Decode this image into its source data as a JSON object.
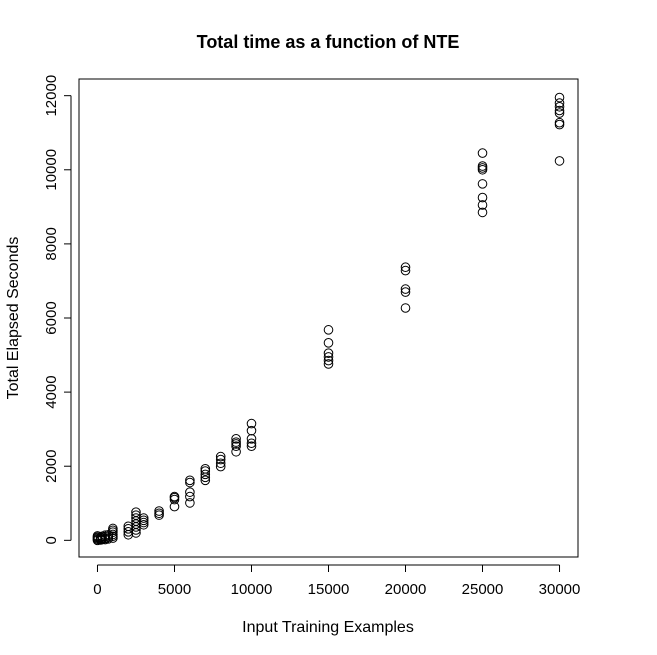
{
  "chart_data": {
    "type": "scatter",
    "title": "Total time as a function of NTE",
    "xlabel": "Input Training Examples",
    "ylabel": "Total Elapsed Seconds",
    "xlim": [
      -1200,
      31200
    ],
    "ylim": [
      -450,
      12450
    ],
    "xticks": [
      0,
      5000,
      10000,
      15000,
      20000,
      25000,
      30000
    ],
    "yticks": [
      0,
      2000,
      4000,
      6000,
      8000,
      10000,
      12000
    ],
    "grid": false,
    "legend": "none",
    "point_color": "#000000",
    "points": [
      [
        0,
        0
      ],
      [
        0,
        30
      ],
      [
        0,
        60
      ],
      [
        0,
        90
      ],
      [
        0,
        120
      ],
      [
        200,
        10
      ],
      [
        200,
        40
      ],
      [
        200,
        80
      ],
      [
        300,
        20
      ],
      [
        300,
        60
      ],
      [
        300,
        110
      ],
      [
        500,
        20
      ],
      [
        500,
        50
      ],
      [
        500,
        100
      ],
      [
        500,
        140
      ],
      [
        700,
        40
      ],
      [
        700,
        90
      ],
      [
        700,
        150
      ],
      [
        1000,
        60
      ],
      [
        1000,
        110
      ],
      [
        1000,
        160
      ],
      [
        1000,
        220
      ],
      [
        1000,
        270
      ],
      [
        1000,
        320
      ],
      [
        2000,
        150
      ],
      [
        2000,
        230
      ],
      [
        2000,
        310
      ],
      [
        2000,
        380
      ],
      [
        2500,
        200
      ],
      [
        2500,
        280
      ],
      [
        2500,
        360
      ],
      [
        2500,
        440
      ],
      [
        2500,
        520
      ],
      [
        2500,
        600
      ],
      [
        2500,
        680
      ],
      [
        2500,
        760
      ],
      [
        3000,
        420
      ],
      [
        3000,
        480
      ],
      [
        3000,
        540
      ],
      [
        3000,
        600
      ],
      [
        4000,
        680
      ],
      [
        4000,
        730
      ],
      [
        4000,
        790
      ],
      [
        5000,
        910
      ],
      [
        5000,
        1100
      ],
      [
        5000,
        1150
      ],
      [
        5000,
        1180
      ],
      [
        6000,
        1010
      ],
      [
        6000,
        1180
      ],
      [
        6000,
        1300
      ],
      [
        6000,
        1560
      ],
      [
        6000,
        1620
      ],
      [
        7000,
        1620
      ],
      [
        7000,
        1700
      ],
      [
        7000,
        1780
      ],
      [
        7000,
        1870
      ],
      [
        7000,
        1930
      ],
      [
        8000,
        1990
      ],
      [
        8000,
        2080
      ],
      [
        8000,
        2180
      ],
      [
        8000,
        2260
      ],
      [
        9000,
        2390
      ],
      [
        9000,
        2540
      ],
      [
        9000,
        2600
      ],
      [
        9000,
        2650
      ],
      [
        9000,
        2740
      ],
      [
        10000,
        2540
      ],
      [
        10000,
        2620
      ],
      [
        10000,
        2740
      ],
      [
        10000,
        2960
      ],
      [
        10000,
        3150
      ],
      [
        15000,
        4760
      ],
      [
        15000,
        4850
      ],
      [
        15000,
        4950
      ],
      [
        15000,
        5050
      ],
      [
        15000,
        5330
      ],
      [
        15000,
        5680
      ],
      [
        20000,
        6270
      ],
      [
        20000,
        6700
      ],
      [
        20000,
        6780
      ],
      [
        20000,
        7280
      ],
      [
        20000,
        7370
      ],
      [
        25000,
        8850
      ],
      [
        25000,
        9050
      ],
      [
        25000,
        9250
      ],
      [
        25000,
        9620
      ],
      [
        25000,
        10000
      ],
      [
        25000,
        10050
      ],
      [
        25000,
        10100
      ],
      [
        25000,
        10450
      ],
      [
        30000,
        10240
      ],
      [
        30000,
        11220
      ],
      [
        30000,
        11270
      ],
      [
        30000,
        11530
      ],
      [
        30000,
        11600
      ],
      [
        30000,
        11700
      ],
      [
        30000,
        11800
      ],
      [
        30000,
        11950
      ]
    ]
  }
}
